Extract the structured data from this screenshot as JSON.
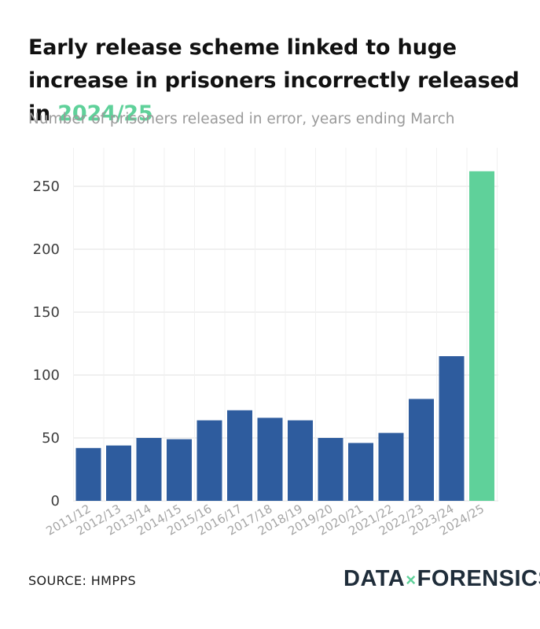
{
  "header": {
    "title_main": "Early release scheme linked to huge increase in prisoners incorrectly released in ",
    "title_highlight": "2024/25",
    "subtitle": "Number of prisoners released in error, years ending March"
  },
  "footer": {
    "source": "SOURCE: HMPPS",
    "brand_left": "DATA",
    "brand_mark": "×",
    "brand_right": "FORENSICS"
  },
  "colors": {
    "bar": "#2e5c9e",
    "highlight": "#5fd19a",
    "grid": "#e6e6e6"
  },
  "chart_data": {
    "type": "bar",
    "title": "Early release scheme linked to huge increase in prisoners incorrectly released in 2024/25",
    "subtitle": "Number of prisoners released in error, years ending March",
    "xlabel": "",
    "ylabel": "",
    "ylim": [
      0,
      265
    ],
    "yticks": [
      0,
      50,
      100,
      150,
      200,
      250
    ],
    "categories": [
      "2011/12",
      "2012/13",
      "2013/14",
      "2014/15",
      "2015/16",
      "2016/17",
      "2017/18",
      "2018/19",
      "2019/20",
      "2020/21",
      "2021/22",
      "2022/23",
      "2023/24",
      "2024/25"
    ],
    "values": [
      42,
      44,
      50,
      49,
      64,
      72,
      66,
      64,
      50,
      46,
      54,
      81,
      115,
      262
    ],
    "highlight_category": "2024/25",
    "grid": true
  }
}
